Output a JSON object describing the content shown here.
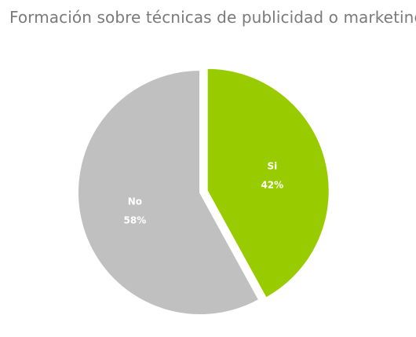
{
  "chart_data": {
    "type": "pie",
    "title": "Formación sobre técnicas de publicidad o marketing.",
    "slices": [
      {
        "label": "Si",
        "value": 42,
        "value_label": "42%",
        "color": "#99cc00",
        "exploded": true
      },
      {
        "label": "No",
        "value": 58,
        "value_label": "58%",
        "color": "#c0c0c0",
        "exploded": false
      }
    ]
  }
}
